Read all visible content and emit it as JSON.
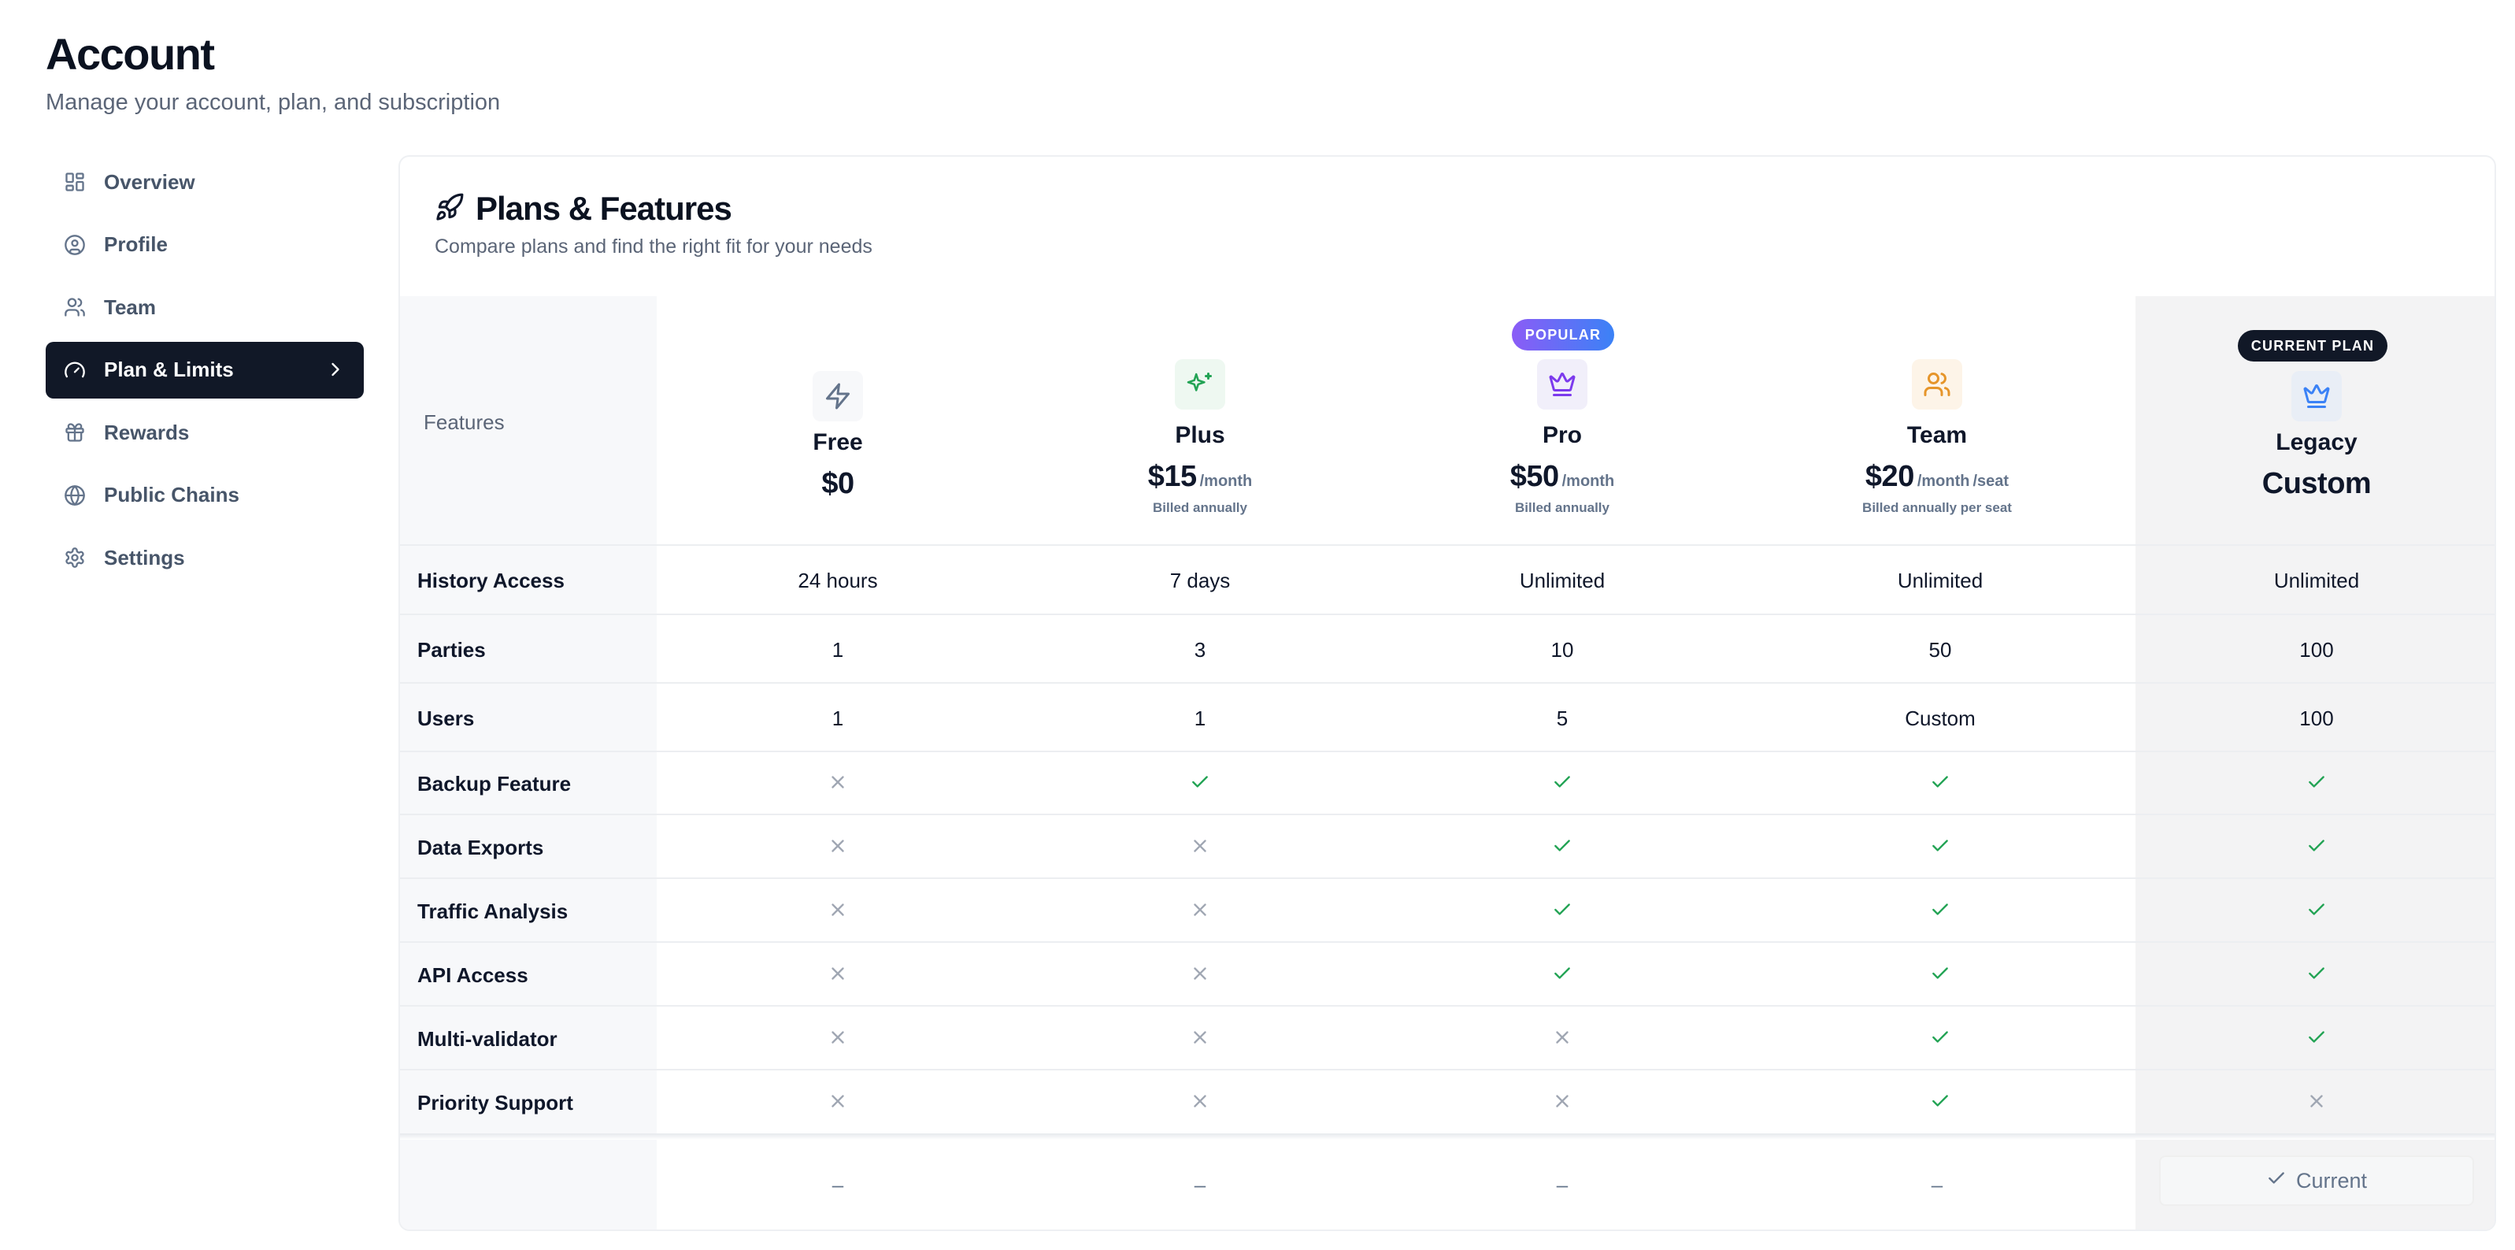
{
  "page": {
    "title": "Account",
    "subtitle": "Manage your account, plan, and subscription"
  },
  "sidebar": {
    "items": [
      {
        "label": "Overview",
        "icon": "grid-icon",
        "active": false
      },
      {
        "label": "Profile",
        "icon": "user-circle-icon",
        "active": false
      },
      {
        "label": "Team",
        "icon": "users-icon",
        "active": false
      },
      {
        "label": "Plan & Limits",
        "icon": "gauge-icon",
        "active": true
      },
      {
        "label": "Rewards",
        "icon": "gift-icon",
        "active": false
      },
      {
        "label": "Public Chains",
        "icon": "globe-icon",
        "active": false
      },
      {
        "label": "Settings",
        "icon": "gear-icon",
        "active": false
      }
    ]
  },
  "card": {
    "title": "Plans & Features",
    "title_icon": "rocket-icon",
    "description": "Compare plans and find the right fit for your needs",
    "features_header": "Features"
  },
  "plans": [
    {
      "name": "Free",
      "price": "$0",
      "period": "",
      "billing": "",
      "icon": "bolt-icon",
      "icon_color": "#64748b",
      "icon_bg": "#f7f8fa"
    },
    {
      "name": "Plus",
      "price": "$15",
      "period": "/month",
      "billing": "Billed annually",
      "icon": "sparkles-icon",
      "icon_color": "#22a354",
      "icon_bg": "#eef8f1"
    },
    {
      "name": "Pro",
      "price": "$50",
      "period": "/month",
      "billing": "Billed annually",
      "icon": "crown-icon",
      "icon_color": "#7c3aed",
      "icon_bg": "#f1effa",
      "badge": "POPULAR"
    },
    {
      "name": "Team",
      "price": "$20",
      "period": "/month",
      "period2": "/seat",
      "billing": "Billed annually per seat",
      "icon": "users-icon",
      "icon_color": "#e6952a",
      "icon_bg": "#fdf4e8"
    },
    {
      "name": "Legacy",
      "price": "Custom",
      "period": "",
      "billing": "",
      "icon": "crown-icon",
      "icon_color": "#3b82f6",
      "icon_bg": "#e9eef6",
      "badge": "CURRENT PLAN"
    }
  ],
  "features": [
    {
      "name": "History Access",
      "values": [
        "24 hours",
        "7 days",
        "Unlimited",
        "Unlimited",
        "Unlimited"
      ]
    },
    {
      "name": "Parties",
      "values": [
        "1",
        "3",
        "10",
        "50",
        "100"
      ]
    },
    {
      "name": "Users",
      "values": [
        "1",
        "1",
        "5",
        "Custom",
        "100"
      ]
    },
    {
      "name": "Backup Feature",
      "values": [
        false,
        true,
        true,
        true,
        true
      ]
    },
    {
      "name": "Data Exports",
      "values": [
        false,
        false,
        true,
        true,
        true
      ]
    },
    {
      "name": "Traffic Analysis",
      "values": [
        false,
        false,
        true,
        true,
        true
      ]
    },
    {
      "name": "API Access",
      "values": [
        false,
        false,
        true,
        true,
        true
      ]
    },
    {
      "name": "Multi-validator",
      "values": [
        false,
        false,
        false,
        true,
        true
      ]
    },
    {
      "name": "Priority Support",
      "values": [
        false,
        false,
        false,
        true,
        false
      ]
    }
  ],
  "footer": {
    "actions": [
      "–",
      "–",
      "–",
      "–"
    ],
    "current_button_label": "Current"
  },
  "colors": {
    "accent_dark": "#111827",
    "check": "#22a354",
    "cross": "#a0a7b3",
    "popular_gradient_start": "#8b5cf6",
    "popular_gradient_end": "#3b82f6"
  }
}
